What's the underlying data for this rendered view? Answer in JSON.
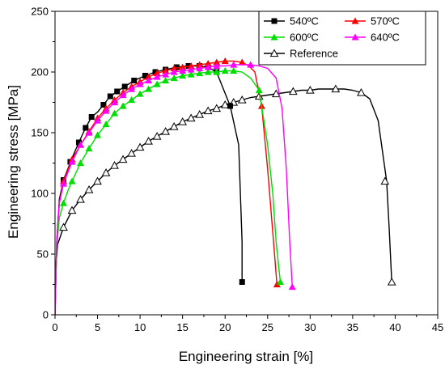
{
  "chart_data": {
    "type": "line",
    "xlabel": "Engineering strain [%]",
    "ylabel": "Engineering stress [MPa]",
    "xlim": [
      0,
      45
    ],
    "ylim": [
      0,
      250
    ],
    "xticks": [
      0,
      5,
      10,
      15,
      20,
      25,
      30,
      35,
      40,
      45
    ],
    "yticks": [
      0,
      50,
      100,
      150,
      200,
      250
    ],
    "grid": false,
    "legend_position": "top-right",
    "series": [
      {
        "name": "540ºC",
        "color": "#000000",
        "marker": "square",
        "points": [
          [
            0,
            0
          ],
          [
            0.2,
            60
          ],
          [
            0.5,
            95
          ],
          [
            1,
            111
          ],
          [
            2,
            129
          ],
          [
            2.8,
            142
          ],
          [
            3.6,
            154
          ],
          [
            4.3,
            163
          ],
          [
            5,
            167
          ],
          [
            5.7,
            173
          ],
          [
            6.5,
            180
          ],
          [
            7.3,
            184
          ],
          [
            8.2,
            188
          ],
          [
            9.3,
            193
          ],
          [
            10.6,
            197
          ],
          [
            11.8,
            200
          ],
          [
            13,
            202
          ],
          [
            14.3,
            204
          ],
          [
            15.7,
            205
          ],
          [
            17,
            205
          ],
          [
            18,
            204
          ],
          [
            19,
            200
          ],
          [
            20.6,
            172
          ],
          [
            21.6,
            140
          ],
          [
            22,
            60
          ],
          [
            22,
            27
          ]
        ],
        "marker_points": [
          [
            1,
            111
          ],
          [
            1.8,
            126
          ],
          [
            2.8,
            142
          ],
          [
            3.6,
            154
          ],
          [
            4.3,
            163
          ],
          [
            5.7,
            173
          ],
          [
            6.5,
            180
          ],
          [
            7.3,
            184
          ],
          [
            8.2,
            188
          ],
          [
            9.3,
            193
          ],
          [
            10.6,
            197
          ],
          [
            11.8,
            200
          ],
          [
            13,
            202
          ],
          [
            14.3,
            204
          ],
          [
            15.7,
            205
          ],
          [
            17,
            205
          ],
          [
            18,
            204
          ],
          [
            19,
            200
          ],
          [
            20.6,
            172
          ],
          [
            22,
            27
          ]
        ]
      },
      {
        "name": "570ºC",
        "color": "#ff0000",
        "marker": "triangle",
        "points": [
          [
            0,
            0
          ],
          [
            0.2,
            60
          ],
          [
            0.5,
            92
          ],
          [
            1,
            110
          ],
          [
            2,
            128
          ],
          [
            3,
            140
          ],
          [
            4,
            151
          ],
          [
            5,
            162
          ],
          [
            6,
            170
          ],
          [
            7,
            177
          ],
          [
            8,
            183
          ],
          [
            9,
            188
          ],
          [
            10,
            192
          ],
          [
            11,
            196
          ],
          [
            12,
            199
          ],
          [
            13,
            201
          ],
          [
            14,
            203
          ],
          [
            15,
            204
          ],
          [
            16,
            205
          ],
          [
            17,
            206
          ],
          [
            18,
            207
          ],
          [
            19,
            208
          ],
          [
            20,
            209
          ],
          [
            21,
            209
          ],
          [
            22,
            208
          ],
          [
            22.8,
            205
          ],
          [
            23.5,
            200
          ],
          [
            24.3,
            172
          ],
          [
            25,
            120
          ],
          [
            25.7,
            60
          ],
          [
            26.1,
            25
          ]
        ],
        "marker_points": [
          [
            1,
            110
          ],
          [
            2,
            128
          ],
          [
            3,
            140
          ],
          [
            4,
            151
          ],
          [
            5,
            162
          ],
          [
            6,
            170
          ],
          [
            7,
            177
          ],
          [
            8,
            183
          ],
          [
            9,
            188
          ],
          [
            10,
            192
          ],
          [
            11,
            196
          ],
          [
            12,
            199
          ],
          [
            13,
            201
          ],
          [
            14,
            203
          ],
          [
            15,
            204
          ],
          [
            16,
            205
          ],
          [
            17,
            206
          ],
          [
            18,
            207
          ],
          [
            19,
            208
          ],
          [
            20,
            209
          ],
          [
            22,
            208
          ],
          [
            24.3,
            172
          ],
          [
            26.1,
            25
          ]
        ]
      },
      {
        "name": "600ºC",
        "color": "#00dd00",
        "marker": "triangle",
        "points": [
          [
            0,
            0
          ],
          [
            0.2,
            55
          ],
          [
            0.5,
            80
          ],
          [
            1,
            92
          ],
          [
            1.5,
            102
          ],
          [
            2,
            110
          ],
          [
            3,
            125
          ],
          [
            4,
            137
          ],
          [
            5,
            148
          ],
          [
            6,
            157
          ],
          [
            7,
            166
          ],
          [
            8,
            172
          ],
          [
            9,
            177
          ],
          [
            10,
            182
          ],
          [
            11,
            186
          ],
          [
            12,
            190
          ],
          [
            13,
            193
          ],
          [
            14,
            195
          ],
          [
            15,
            197
          ],
          [
            16,
            198
          ],
          [
            17,
            199
          ],
          [
            18,
            200
          ],
          [
            19,
            200
          ],
          [
            20,
            201
          ],
          [
            21,
            201
          ],
          [
            22,
            200
          ],
          [
            23,
            195
          ],
          [
            24,
            185
          ],
          [
            25,
            140
          ],
          [
            25.6,
            100
          ],
          [
            26,
            60
          ],
          [
            26.5,
            27
          ]
        ],
        "marker_points": [
          [
            1,
            92
          ],
          [
            2,
            110
          ],
          [
            3,
            125
          ],
          [
            4,
            137
          ],
          [
            5,
            148
          ],
          [
            6,
            157
          ],
          [
            7,
            166
          ],
          [
            8,
            172
          ],
          [
            9,
            177
          ],
          [
            10,
            182
          ],
          [
            11,
            186
          ],
          [
            12,
            190
          ],
          [
            13,
            193
          ],
          [
            14,
            195
          ],
          [
            15,
            197
          ],
          [
            16,
            198
          ],
          [
            17,
            199
          ],
          [
            18,
            200
          ],
          [
            19,
            200
          ],
          [
            20,
            201
          ],
          [
            21,
            201
          ],
          [
            24,
            185
          ],
          [
            26.5,
            27
          ]
        ]
      },
      {
        "name": "640ºC",
        "color": "#ff00ff",
        "marker": "triangle",
        "points": [
          [
            0,
            0
          ],
          [
            0.2,
            60
          ],
          [
            0.5,
            92
          ],
          [
            1,
            108
          ],
          [
            2,
            126
          ],
          [
            3,
            140
          ],
          [
            4,
            150
          ],
          [
            5,
            160
          ],
          [
            6,
            168
          ],
          [
            7,
            175
          ],
          [
            8,
            181
          ],
          [
            9,
            186
          ],
          [
            10,
            190
          ],
          [
            11,
            193
          ],
          [
            12,
            196
          ],
          [
            13,
            198
          ],
          [
            14,
            200
          ],
          [
            15,
            201
          ],
          [
            16,
            202
          ],
          [
            17,
            203
          ],
          [
            18,
            204
          ],
          [
            19,
            205
          ],
          [
            20,
            205
          ],
          [
            21,
            206
          ],
          [
            22,
            206
          ],
          [
            23,
            206
          ],
          [
            24,
            205
          ],
          [
            25,
            203
          ],
          [
            26,
            195
          ],
          [
            26.7,
            170
          ],
          [
            27.2,
            120
          ],
          [
            27.6,
            60
          ],
          [
            27.9,
            23
          ]
        ],
        "marker_points": [
          [
            1,
            108
          ],
          [
            2,
            126
          ],
          [
            3,
            140
          ],
          [
            4,
            150
          ],
          [
            5,
            160
          ],
          [
            6,
            168
          ],
          [
            7,
            175
          ],
          [
            8,
            181
          ],
          [
            9,
            186
          ],
          [
            10,
            190
          ],
          [
            11,
            193
          ],
          [
            12,
            196
          ],
          [
            13,
            198
          ],
          [
            14,
            200
          ],
          [
            15,
            201
          ],
          [
            16,
            202
          ],
          [
            17,
            203
          ],
          [
            18,
            204
          ],
          [
            19,
            205
          ],
          [
            21,
            206
          ],
          [
            23,
            206
          ],
          [
            27.9,
            23
          ]
        ]
      },
      {
        "name": "Reference",
        "color": "#000000",
        "marker": "open-triangle",
        "points": [
          [
            0,
            0
          ],
          [
            0.1,
            40
          ],
          [
            0.3,
            58
          ],
          [
            1,
            72
          ],
          [
            2,
            86
          ],
          [
            3,
            95
          ],
          [
            4,
            103
          ],
          [
            5,
            110
          ],
          [
            6,
            117
          ],
          [
            7,
            123
          ],
          [
            8,
            128
          ],
          [
            9,
            133
          ],
          [
            10,
            138
          ],
          [
            11,
            143
          ],
          [
            12,
            147
          ],
          [
            13,
            151
          ],
          [
            14,
            155
          ],
          [
            15,
            159
          ],
          [
            16,
            162
          ],
          [
            17,
            165
          ],
          [
            18,
            168
          ],
          [
            19,
            170
          ],
          [
            20,
            173
          ],
          [
            21,
            175
          ],
          [
            22,
            177
          ],
          [
            23,
            179
          ],
          [
            24,
            180
          ],
          [
            25,
            181
          ],
          [
            26,
            182
          ],
          [
            27,
            183
          ],
          [
            28,
            184
          ],
          [
            29,
            185
          ],
          [
            30,
            185
          ],
          [
            31,
            186
          ],
          [
            32,
            186
          ],
          [
            33,
            186
          ],
          [
            34,
            186
          ],
          [
            35,
            185
          ],
          [
            36,
            183
          ],
          [
            37,
            178
          ],
          [
            38,
            160
          ],
          [
            39,
            110
          ],
          [
            39.3,
            70
          ],
          [
            39.6,
            27
          ]
        ],
        "marker_points": [
          [
            1,
            72
          ],
          [
            2,
            86
          ],
          [
            3,
            95
          ],
          [
            4,
            103
          ],
          [
            5,
            110
          ],
          [
            6,
            117
          ],
          [
            7,
            123
          ],
          [
            8,
            128
          ],
          [
            9,
            133
          ],
          [
            10,
            138
          ],
          [
            11,
            143
          ],
          [
            12,
            147
          ],
          [
            13,
            151
          ],
          [
            14,
            155
          ],
          [
            15,
            159
          ],
          [
            16,
            162
          ],
          [
            17,
            165
          ],
          [
            18,
            168
          ],
          [
            19,
            170
          ],
          [
            20,
            173
          ],
          [
            21,
            175
          ],
          [
            22,
            177
          ],
          [
            24,
            180
          ],
          [
            26,
            182
          ],
          [
            28,
            184
          ],
          [
            30,
            185
          ],
          [
            33,
            186
          ],
          [
            36,
            183
          ],
          [
            38.8,
            110
          ],
          [
            39.6,
            27
          ]
        ]
      }
    ]
  }
}
